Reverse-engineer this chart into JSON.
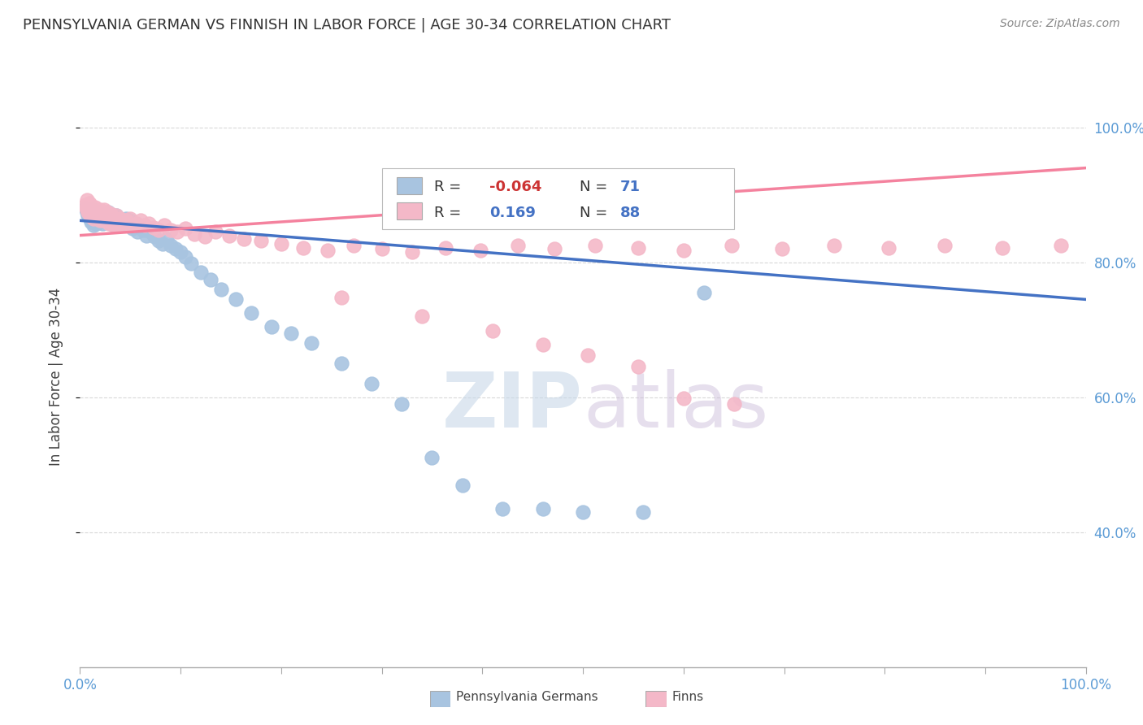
{
  "title": "PENNSYLVANIA GERMAN VS FINNISH IN LABOR FORCE | AGE 30-34 CORRELATION CHART",
  "source": "Source: ZipAtlas.com",
  "ylabel": "In Labor Force | Age 30-34",
  "legend_entries": [
    {
      "label": "Pennsylvania Germans",
      "color": "#a8c4e0",
      "R": -0.064,
      "N": 71
    },
    {
      "label": "Finns",
      "color": "#f4b8c8",
      "R": 0.169,
      "N": 88
    }
  ],
  "blue_scatter_x": [
    0.005,
    0.007,
    0.008,
    0.009,
    0.01,
    0.01,
    0.011,
    0.012,
    0.013,
    0.014,
    0.015,
    0.016,
    0.017,
    0.018,
    0.019,
    0.02,
    0.021,
    0.022,
    0.023,
    0.025,
    0.026,
    0.028,
    0.03,
    0.031,
    0.032,
    0.033,
    0.034,
    0.035,
    0.036,
    0.037,
    0.038,
    0.04,
    0.042,
    0.044,
    0.046,
    0.048,
    0.05,
    0.052,
    0.055,
    0.057,
    0.06,
    0.063,
    0.066,
    0.07,
    0.074,
    0.078,
    0.082,
    0.086,
    0.09,
    0.095,
    0.1,
    0.105,
    0.11,
    0.12,
    0.13,
    0.14,
    0.155,
    0.17,
    0.19,
    0.21,
    0.23,
    0.26,
    0.29,
    0.32,
    0.35,
    0.38,
    0.42,
    0.46,
    0.5,
    0.56,
    0.62
  ],
  "blue_scatter_y": [
    0.88,
    0.875,
    0.87,
    0.868,
    0.865,
    0.872,
    0.86,
    0.878,
    0.855,
    0.862,
    0.87,
    0.858,
    0.865,
    0.872,
    0.86,
    0.875,
    0.865,
    0.858,
    0.862,
    0.87,
    0.868,
    0.875,
    0.865,
    0.858,
    0.862,
    0.868,
    0.855,
    0.862,
    0.87,
    0.855,
    0.86,
    0.855,
    0.862,
    0.858,
    0.865,
    0.855,
    0.862,
    0.85,
    0.858,
    0.845,
    0.852,
    0.848,
    0.84,
    0.845,
    0.838,
    0.832,
    0.828,
    0.835,
    0.825,
    0.82,
    0.815,
    0.808,
    0.798,
    0.785,
    0.775,
    0.76,
    0.745,
    0.725,
    0.705,
    0.695,
    0.68,
    0.65,
    0.62,
    0.59,
    0.51,
    0.47,
    0.435,
    0.435,
    0.43,
    0.43,
    0.755
  ],
  "pink_scatter_x": [
    0.005,
    0.006,
    0.007,
    0.008,
    0.009,
    0.01,
    0.01,
    0.011,
    0.012,
    0.013,
    0.014,
    0.015,
    0.016,
    0.017,
    0.018,
    0.019,
    0.02,
    0.02,
    0.021,
    0.022,
    0.023,
    0.024,
    0.025,
    0.026,
    0.027,
    0.028,
    0.029,
    0.03,
    0.031,
    0.032,
    0.033,
    0.034,
    0.035,
    0.036,
    0.037,
    0.038,
    0.039,
    0.04,
    0.042,
    0.044,
    0.046,
    0.048,
    0.05,
    0.053,
    0.056,
    0.06,
    0.064,
    0.068,
    0.073,
    0.078,
    0.084,
    0.09,
    0.097,
    0.105,
    0.114,
    0.124,
    0.135,
    0.148,
    0.163,
    0.18,
    0.2,
    0.222,
    0.246,
    0.272,
    0.3,
    0.33,
    0.363,
    0.398,
    0.435,
    0.472,
    0.512,
    0.555,
    0.6,
    0.648,
    0.698,
    0.75,
    0.804,
    0.86,
    0.917,
    0.975,
    0.26,
    0.34,
    0.41,
    0.46,
    0.505,
    0.555,
    0.6,
    0.65
  ],
  "pink_scatter_y": [
    0.885,
    0.88,
    0.892,
    0.875,
    0.888,
    0.87,
    0.882,
    0.868,
    0.88,
    0.865,
    0.875,
    0.882,
    0.87,
    0.878,
    0.865,
    0.872,
    0.878,
    0.862,
    0.87,
    0.875,
    0.862,
    0.878,
    0.87,
    0.862,
    0.875,
    0.868,
    0.858,
    0.872,
    0.862,
    0.858,
    0.865,
    0.855,
    0.862,
    0.87,
    0.855,
    0.862,
    0.858,
    0.865,
    0.86,
    0.855,
    0.862,
    0.858,
    0.865,
    0.855,
    0.858,
    0.862,
    0.855,
    0.858,
    0.852,
    0.848,
    0.855,
    0.848,
    0.845,
    0.85,
    0.842,
    0.838,
    0.845,
    0.84,
    0.835,
    0.832,
    0.828,
    0.822,
    0.818,
    0.825,
    0.82,
    0.815,
    0.822,
    0.818,
    0.825,
    0.82,
    0.825,
    0.822,
    0.818,
    0.825,
    0.82,
    0.825,
    0.822,
    0.825,
    0.822,
    0.825,
    0.748,
    0.72,
    0.698,
    0.678,
    0.662,
    0.645,
    0.598,
    0.59
  ],
  "blue_line_y_start": 0.862,
  "blue_line_y_end": 0.745,
  "pink_line_y_start": 0.84,
  "pink_line_y_end": 0.94,
  "blue_line_color": "#4472c4",
  "pink_line_color": "#f4829e",
  "blue_scatter_color": "#a8c4e0",
  "pink_scatter_color": "#f4b8c8",
  "watermark_color": "#c8d8e8",
  "background_color": "#ffffff",
  "grid_color": "#d8d8d8",
  "xlim": [
    0.0,
    1.0
  ],
  "ylim": [
    0.2,
    1.06
  ]
}
